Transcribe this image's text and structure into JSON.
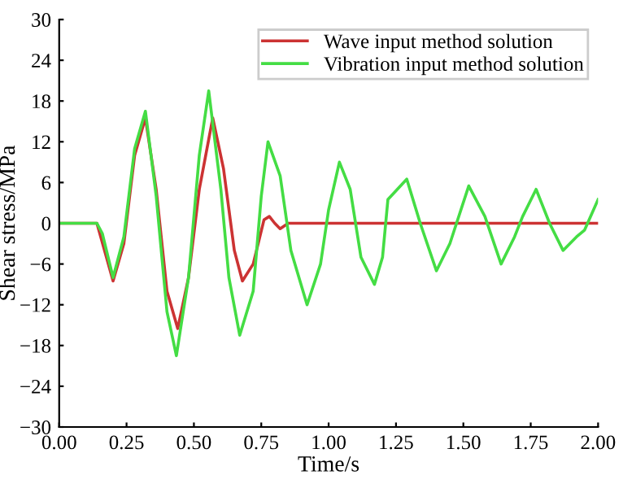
{
  "chart_data": {
    "type": "line",
    "xlabel": "Time/s",
    "ylabel": "Shear stress/MPa",
    "xlim": [
      0,
      2
    ],
    "xticks": [
      {
        "value": 0,
        "label": "0.00"
      },
      {
        "value": 0.25,
        "label": "0.25"
      },
      {
        "value": 0.5,
        "label": "0.50"
      },
      {
        "value": 0.75,
        "label": "0.75"
      },
      {
        "value": 1,
        "label": "1.00"
      },
      {
        "value": 1.25,
        "label": "1.25"
      },
      {
        "value": 1.5,
        "label": "1.50"
      },
      {
        "value": 1.75,
        "label": "1.75"
      },
      {
        "value": 2,
        "label": "2.00"
      }
    ],
    "ylim": [
      -30,
      30
    ],
    "yticks": [
      {
        "value": -30,
        "label": "−30"
      },
      {
        "value": -24,
        "label": "−24"
      },
      {
        "value": -18,
        "label": "−18"
      },
      {
        "value": -12,
        "label": "−12"
      },
      {
        "value": -6,
        "label": "−6"
      },
      0,
      6,
      12,
      18,
      24,
      30
    ],
    "grid": false,
    "legend": "top right",
    "series": [
      {
        "name": "Wave input method solution",
        "color": "#cc3333",
        "x": [
          0,
          0.14,
          0.2,
          0.24,
          0.28,
          0.32,
          0.36,
          0.4,
          0.44,
          0.48,
          0.52,
          0.57,
          0.61,
          0.65,
          0.68,
          0.72,
          0.76,
          0.78,
          0.8,
          0.82,
          0.85,
          0.9,
          1.0,
          2.0
        ],
        "values": [
          0,
          0,
          -8.5,
          -3,
          10,
          15.5,
          5,
          -10,
          -15.5,
          -8,
          5,
          15.5,
          8,
          -4,
          -8.5,
          -6,
          0.5,
          1,
          0,
          -0.8,
          0,
          0,
          0,
          0
        ]
      },
      {
        "name": "Vibration input method solution",
        "color": "#44dd44",
        "x": [
          0,
          0.14,
          0.16,
          0.2,
          0.24,
          0.28,
          0.32,
          0.36,
          0.4,
          0.435,
          0.48,
          0.52,
          0.555,
          0.6,
          0.63,
          0.67,
          0.72,
          0.75,
          0.775,
          0.82,
          0.86,
          0.92,
          0.97,
          1.0,
          1.04,
          1.08,
          1.12,
          1.17,
          1.2,
          1.22,
          1.29,
          1.34,
          1.4,
          1.45,
          1.52,
          1.58,
          1.64,
          1.69,
          1.72,
          1.77,
          1.82,
          1.87,
          1.92,
          1.95,
          2.0
        ],
        "values": [
          0,
          0,
          -1.5,
          -8,
          -2,
          11,
          16.5,
          4,
          -13,
          -19.5,
          -8,
          10,
          19.5,
          5,
          -8,
          -16.5,
          -10,
          4,
          12,
          7,
          -4,
          -12,
          -6,
          2,
          9,
          5,
          -5,
          -9,
          -5,
          3.5,
          6.5,
          0,
          -7,
          -3,
          5.5,
          1,
          -6,
          -2,
          1,
          5,
          0,
          -4,
          -2,
          -1,
          3.5
        ]
      }
    ]
  }
}
